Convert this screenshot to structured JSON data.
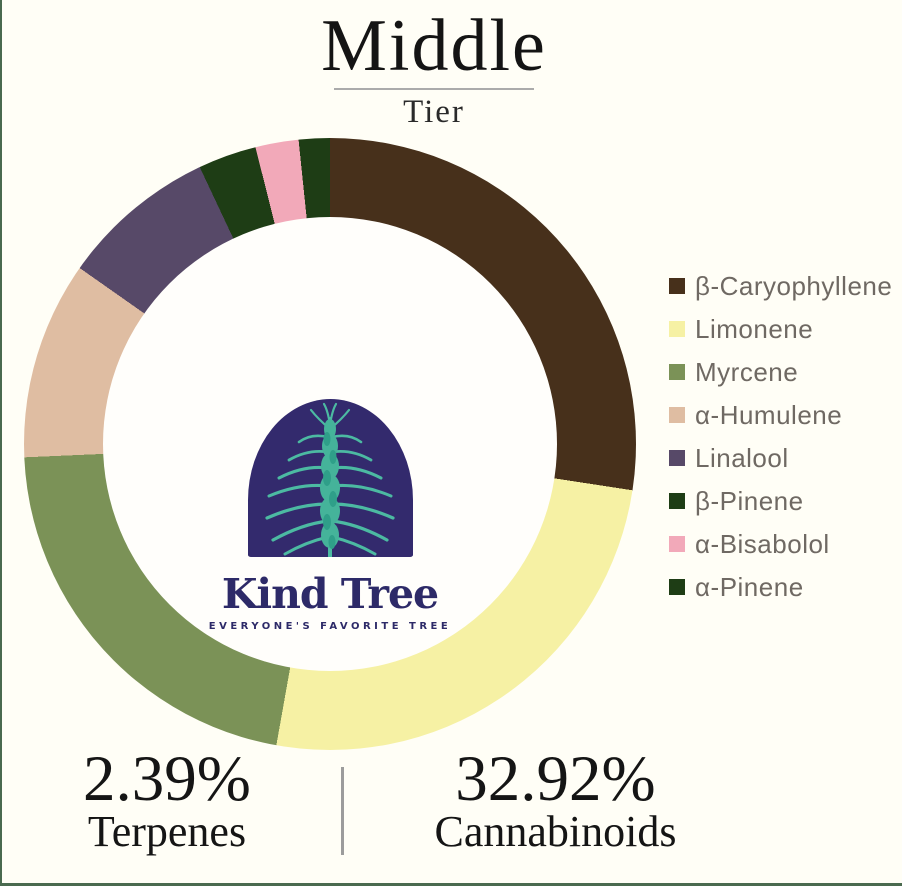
{
  "page": {
    "background": "#fffef6",
    "edge_color": "#4a6a4f"
  },
  "header": {
    "title": "Middle",
    "subtitle": "Tier"
  },
  "logo": {
    "name": "Kind Tree",
    "tagline": "EVERYONE'S FAVORITE TREE",
    "arch_color": "#332a6d",
    "plant_color": "#4cbaa2",
    "text_color": "#2d2a68"
  },
  "chart_data": {
    "type": "pie",
    "donut": true,
    "start_angle_deg": 0,
    "direction": "clockwise",
    "legend_position": "right",
    "title": "Middle Tier terpene profile",
    "series": [
      {
        "label": "β-Caryophyllene",
        "angle_deg": 98.7,
        "share_of_donut_pct": 27.4,
        "color": "#47301b"
      },
      {
        "label": "Limonene",
        "angle_deg": 91.4,
        "share_of_donut_pct": 25.4,
        "color": "#f6f1a4"
      },
      {
        "label": "Myrcene",
        "angle_deg": 77.4,
        "share_of_donut_pct": 21.5,
        "color": "#7b9257"
      },
      {
        "label": "α-Humulene",
        "angle_deg": 37.6,
        "share_of_donut_pct": 10.4,
        "color": "#dfbda2"
      },
      {
        "label": "Linalool",
        "angle_deg": 29.7,
        "share_of_donut_pct": 8.3,
        "color": "#574968"
      },
      {
        "label": "β-Pinene",
        "angle_deg": 11.1,
        "share_of_donut_pct": 3.1,
        "color": "#1e3d15"
      },
      {
        "label": "α-Bisabolol",
        "angle_deg": 8.2,
        "share_of_donut_pct": 2.3,
        "color": "#f2a9b9"
      },
      {
        "label": "α-Pinene",
        "angle_deg": 5.9,
        "share_of_donut_pct": 1.6,
        "color": "#1e3d15"
      }
    ],
    "annotations": [
      {
        "value": "2.39%",
        "label": "Terpenes"
      },
      {
        "value": "32.92%",
        "label": "Cannabinoids"
      }
    ]
  },
  "stats": {
    "terpenes": {
      "value": "2.39%",
      "label": "Terpenes"
    },
    "cannabinoids": {
      "value": "32.92%",
      "label": "Cannabinoids"
    }
  }
}
